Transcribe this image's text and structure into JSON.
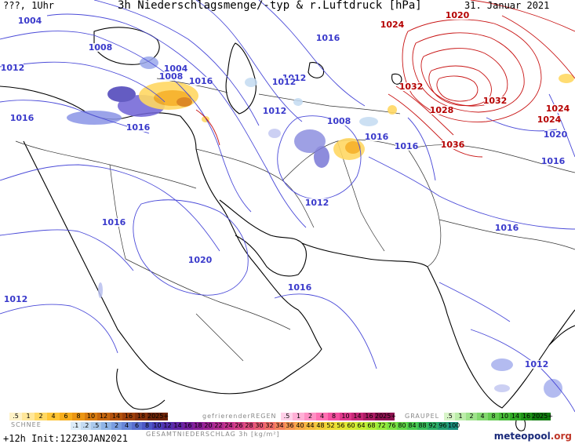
{
  "header": {
    "top_left": "???, 1Uhr",
    "title": "3h Niederschlagsmenge/-typ & r.Luftdruck [hPa]",
    "date": "31. Januar 2021"
  },
  "isobar_labels": [
    {
      "text": "1004",
      "color": "#3a3acb"
    },
    {
      "text": "1008",
      "color": "#3a3acb"
    },
    {
      "text": "1012",
      "color": "#3a3acb"
    },
    {
      "text": "1016",
      "color": "#3a3acb"
    },
    {
      "text": "1008",
      "color": "#3a3acb"
    },
    {
      "text": "1004",
      "color": "#3a3acb"
    },
    {
      "text": "1016",
      "color": "#3a3acb"
    },
    {
      "text": "1016",
      "color": "#3a3acb"
    },
    {
      "text": "1012",
      "color": "#3a3acb"
    },
    {
      "text": "1012",
      "color": "#3a3acb"
    },
    {
      "text": "1012",
      "color": "#3a3acb"
    },
    {
      "text": "1008",
      "color": "#3a3acb"
    },
    {
      "text": "1016",
      "color": "#3a3acb"
    },
    {
      "text": "1016",
      "color": "#3a3acb"
    },
    {
      "text": "1012",
      "color": "#3a3acb"
    },
    {
      "text": "1016",
      "color": "#3a3acb"
    },
    {
      "text": "1020",
      "color": "#3a3acb"
    },
    {
      "text": "1016",
      "color": "#3a3acb"
    },
    {
      "text": "1016",
      "color": "#3a3acb"
    },
    {
      "text": "1012",
      "color": "#3a3acb"
    },
    {
      "text": "1012",
      "color": "#3a3acb"
    },
    {
      "text": "1024",
      "color": "#b50000"
    },
    {
      "text": "1020",
      "color": "#b50000"
    },
    {
      "text": "1032",
      "color": "#b50000"
    },
    {
      "text": "1032",
      "color": "#b50000"
    },
    {
      "text": "1028",
      "color": "#b50000"
    },
    {
      "text": "1036",
      "color": "#b50000"
    },
    {
      "text": "1024",
      "color": "#b50000"
    },
    {
      "text": "1024",
      "color": "#b50000"
    },
    {
      "text": "1020",
      "color": "#3a3acb"
    },
    {
      "text": "1016",
      "color": "#3a3acb"
    },
    {
      "text": "1016",
      "color": "#3a3acb"
    }
  ],
  "legend": {
    "snow": {
      "title": "SCHNEE",
      "values": [
        ".5",
        "1",
        "2",
        "4",
        "6",
        "8",
        "10",
        "12",
        "14",
        "16",
        "18",
        "2025+"
      ],
      "colors": [
        "#fff3c8",
        "#ffe79a",
        "#ffd863",
        "#ffc534",
        "#f7ae1c",
        "#eb9613",
        "#d97c0f",
        "#c6660d",
        "#b3520c",
        "#9e400b",
        "#87310a",
        "#6d2408"
      ]
    },
    "freezing_rain": {
      "title": "gefrierenderREGEN",
      "values": [
        ".5",
        "1",
        "2",
        "4",
        "8",
        "10",
        "14",
        "16",
        "2025+"
      ],
      "colors": [
        "#ffd0e8",
        "#ffb0d6",
        "#ff90c4",
        "#ff70b2",
        "#f550a0",
        "#e0388c",
        "#c82878",
        "#ac1c64",
        "#8e1250"
      ]
    },
    "graupel": {
      "title": "GRAUPEL",
      "values": [
        ".5",
        "1",
        "2",
        "4",
        "8",
        "10",
        "14",
        "16",
        "2025+"
      ],
      "colors": [
        "#d8f5c8",
        "#bcedaa",
        "#9fe38c",
        "#82d86e",
        "#64cc50",
        "#48bd38",
        "#31aa26",
        "#1f9418",
        "#107c0e"
      ]
    },
    "total": {
      "title": "GESAMTNIEDERSCHLAG 3h [kg/m²]",
      "values": [
        ".1",
        ".2",
        ".5",
        "1",
        "2",
        "4",
        "6",
        "8",
        "10",
        "12",
        "14",
        "16",
        "18",
        "20",
        "22",
        "24",
        "26",
        "28",
        "30",
        "32",
        "34",
        "36",
        "40",
        "44",
        "48",
        "52",
        "56",
        "60",
        "64",
        "68",
        "72",
        "76",
        "80",
        "84",
        "88",
        "92",
        "96",
        "100"
      ],
      "colors": [
        "#dcecf8",
        "#c4dbf2",
        "#aac9ec",
        "#8fb4e6",
        "#7a9de0",
        "#6886d8",
        "#5a6fd0",
        "#4d58c6",
        "#4a40b8",
        "#5230ae",
        "#6226a6",
        "#74209e",
        "#882098",
        "#9c2494",
        "#b02a90",
        "#c2328c",
        "#d23e86",
        "#de4c7e",
        "#e85c74",
        "#ef6e68",
        "#f4825c",
        "#f69650",
        "#f7aa46",
        "#f6bc3e",
        "#f3cc38",
        "#eeda34",
        "#e6e432",
        "#d8ea32",
        "#c6ee34",
        "#b0ee38",
        "#96ea3c",
        "#7ce242",
        "#62d848",
        "#4ccc50",
        "#3abe5a",
        "#2cae64",
        "#229e70",
        "#1a8e7c"
      ]
    }
  },
  "footer": {
    "run_info": "+12h Init:12Z30JAN2021",
    "logo_text": "meteopool",
    "logo_tld": ".org"
  },
  "colors": {
    "isobar_low": "#4a4ad8",
    "isobar_high": "#c81414",
    "coastline": "#000000",
    "border": "#333333",
    "snow": "#f0b820",
    "rain": "#6a7ae0"
  }
}
